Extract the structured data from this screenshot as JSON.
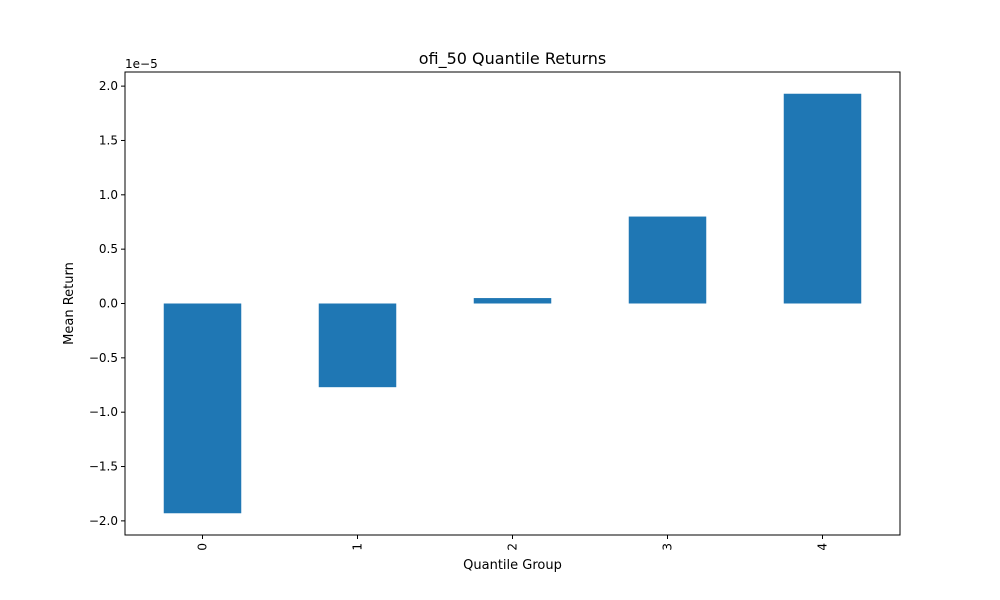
{
  "chart_data": {
    "type": "bar",
    "title": "ofi_50 Quantile Returns",
    "xlabel": "Quantile Group",
    "ylabel": "Mean Return",
    "y_offset_label": "1e−5",
    "categories": [
      "0",
      "1",
      "2",
      "3",
      "4"
    ],
    "values": [
      -1.93e-05,
      -7.7e-06,
      5e-07,
      8e-06,
      1.93e-05
    ],
    "ylim": [
      -2.13e-05,
      2.13e-05
    ],
    "y_ticks": [
      -2e-05,
      -1.5e-05,
      -1e-05,
      -5e-06,
      0.0,
      5e-06,
      1e-05,
      1.5e-05,
      2e-05
    ],
    "y_tick_labels": [
      "−2.0",
      "−1.5",
      "−1.0",
      "−0.5",
      "0.0",
      "0.5",
      "1.0",
      "1.5",
      "2.0"
    ],
    "bar_color": "#1f77b4",
    "grid": false,
    "legend": false
  }
}
